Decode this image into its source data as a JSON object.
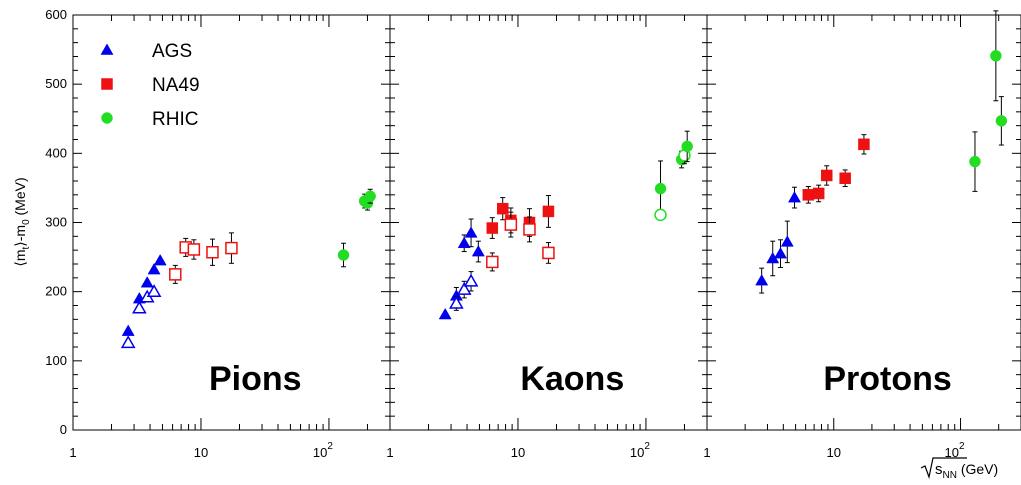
{
  "chart_data": {
    "type": "scatter",
    "x_scale": "log",
    "xlim": [
      1,
      300
    ],
    "ylim": [
      0,
      600
    ],
    "x_tick_values": [
      1,
      10,
      100
    ],
    "x_tick_labels": {
      "base": "10",
      "exponent": "2"
    },
    "y_tick_values": [
      0,
      100,
      200,
      300,
      400,
      500,
      600
    ],
    "ylabel": {
      "prefix": "⟨m",
      "sub1": "t",
      "mid": "⟩-m",
      "sub2": "0",
      "suffix": " (MeV)"
    },
    "xlabel": {
      "sqrt": "s",
      "sub": "NN",
      "unit": " (GeV)"
    },
    "legend": {
      "placement": "top-left",
      "entries": [
        {
          "label": "AGS",
          "marker": "triangle",
          "color": "#0000ee"
        },
        {
          "label": "NA49",
          "marker": "square",
          "color": "#ee1111"
        },
        {
          "label": "RHIC",
          "marker": "circle",
          "color": "#22dd22"
        }
      ]
    },
    "series_styles": {
      "AGS": {
        "marker": "triangle",
        "color": "#0000ee"
      },
      "NA49": {
        "marker": "square",
        "color": "#ee1111"
      },
      "RHIC": {
        "marker": "circle",
        "color": "#22dd22"
      }
    },
    "panels": [
      {
        "label": "Pions",
        "points": [
          {
            "set": "AGS",
            "x": 2.7,
            "y": 143,
            "filled": true
          },
          {
            "set": "AGS",
            "x": 3.3,
            "y": 190,
            "filled": true
          },
          {
            "set": "AGS",
            "x": 3.8,
            "y": 213,
            "filled": true
          },
          {
            "set": "AGS",
            "x": 4.3,
            "y": 232,
            "filled": true
          },
          {
            "set": "AGS",
            "x": 4.8,
            "y": 245,
            "filled": true
          },
          {
            "set": "AGS",
            "x": 2.7,
            "y": 126,
            "filled": false
          },
          {
            "set": "AGS",
            "x": 3.3,
            "y": 176,
            "filled": false
          },
          {
            "set": "AGS",
            "x": 3.8,
            "y": 192,
            "filled": false
          },
          {
            "set": "AGS",
            "x": 4.3,
            "y": 200,
            "filled": false
          },
          {
            "set": "NA49",
            "x": 6.3,
            "y": 225,
            "filled": false,
            "err": 13
          },
          {
            "set": "NA49",
            "x": 7.6,
            "y": 264,
            "filled": false,
            "err": 13
          },
          {
            "set": "NA49",
            "x": 8.8,
            "y": 261,
            "filled": false,
            "err": 14
          },
          {
            "set": "NA49",
            "x": 12.3,
            "y": 257,
            "filled": false,
            "err": 19
          },
          {
            "set": "NA49",
            "x": 17.3,
            "y": 263,
            "filled": false,
            "err": 22
          },
          {
            "set": "RHIC",
            "x": 130,
            "y": 253,
            "filled": true,
            "err": 17
          },
          {
            "set": "RHIC",
            "x": 190,
            "y": 331,
            "filled": true,
            "err": 10
          },
          {
            "set": "RHIC",
            "x": 200,
            "y": 328,
            "filled": true,
            "err": 10
          },
          {
            "set": "RHIC",
            "x": 210,
            "y": 338,
            "filled": true,
            "err": 10
          }
        ]
      },
      {
        "label": "Kaons",
        "points": [
          {
            "set": "AGS",
            "x": 2.7,
            "y": 167,
            "filled": true
          },
          {
            "set": "AGS",
            "x": 3.3,
            "y": 194,
            "filled": true,
            "err": 12
          },
          {
            "set": "AGS",
            "x": 3.8,
            "y": 270,
            "filled": true,
            "err": 12
          },
          {
            "set": "AGS",
            "x": 4.3,
            "y": 285,
            "filled": true,
            "err": 20
          },
          {
            "set": "AGS",
            "x": 4.9,
            "y": 258,
            "filled": true,
            "err": 15
          },
          {
            "set": "AGS",
            "x": 3.3,
            "y": 183,
            "filled": false,
            "err": 10
          },
          {
            "set": "AGS",
            "x": 3.8,
            "y": 203,
            "filled": false,
            "err": 12
          },
          {
            "set": "AGS",
            "x": 4.3,
            "y": 215,
            "filled": false,
            "err": 14
          },
          {
            "set": "NA49",
            "x": 6.3,
            "y": 292,
            "filled": true,
            "err": 15
          },
          {
            "set": "NA49",
            "x": 7.6,
            "y": 320,
            "filled": true,
            "err": 16
          },
          {
            "set": "NA49",
            "x": 8.8,
            "y": 303,
            "filled": true,
            "err": 18
          },
          {
            "set": "NA49",
            "x": 12.3,
            "y": 300,
            "filled": true,
            "err": 20
          },
          {
            "set": "NA49",
            "x": 17.3,
            "y": 316,
            "filled": true,
            "err": 23
          },
          {
            "set": "NA49",
            "x": 6.3,
            "y": 243,
            "filled": false,
            "err": 13
          },
          {
            "set": "NA49",
            "x": 8.8,
            "y": 297,
            "filled": false,
            "err": 18
          },
          {
            "set": "NA49",
            "x": 12.3,
            "y": 290,
            "filled": false,
            "err": 18
          },
          {
            "set": "NA49",
            "x": 17.3,
            "y": 256,
            "filled": false,
            "err": 15
          },
          {
            "set": "RHIC",
            "x": 130,
            "y": 349,
            "filled": true,
            "err": 40
          },
          {
            "set": "RHIC",
            "x": 130,
            "y": 311,
            "filled": false
          },
          {
            "set": "RHIC",
            "x": 190,
            "y": 391,
            "filled": true,
            "err": 12
          },
          {
            "set": "RHIC",
            "x": 200,
            "y": 397,
            "filled": false,
            "err": 12
          },
          {
            "set": "RHIC",
            "x": 210,
            "y": 410,
            "filled": true,
            "err": 22
          }
        ]
      },
      {
        "label": "Protons",
        "points": [
          {
            "set": "AGS",
            "x": 2.7,
            "y": 216,
            "filled": true,
            "err": 18
          },
          {
            "set": "AGS",
            "x": 3.3,
            "y": 248,
            "filled": true,
            "err": 25
          },
          {
            "set": "AGS",
            "x": 3.8,
            "y": 255,
            "filled": true,
            "err": 20
          },
          {
            "set": "AGS",
            "x": 4.3,
            "y": 272,
            "filled": true,
            "err": 30
          },
          {
            "set": "AGS",
            "x": 4.9,
            "y": 336,
            "filled": true,
            "err": 15
          },
          {
            "set": "NA49",
            "x": 6.3,
            "y": 340,
            "filled": true,
            "err": 12
          },
          {
            "set": "NA49",
            "x": 7.6,
            "y": 342,
            "filled": true,
            "err": 12
          },
          {
            "set": "NA49",
            "x": 8.8,
            "y": 368,
            "filled": true,
            "err": 14
          },
          {
            "set": "NA49",
            "x": 12.3,
            "y": 364,
            "filled": true,
            "err": 12
          },
          {
            "set": "NA49",
            "x": 17.3,
            "y": 413,
            "filled": true,
            "err": 14
          },
          {
            "set": "RHIC",
            "x": 130,
            "y": 388,
            "filled": true,
            "err": 43
          },
          {
            "set": "RHIC",
            "x": 190,
            "y": 541,
            "filled": true,
            "err": 65
          },
          {
            "set": "RHIC",
            "x": 210,
            "y": 447,
            "filled": true,
            "err": 35
          }
        ]
      }
    ]
  }
}
